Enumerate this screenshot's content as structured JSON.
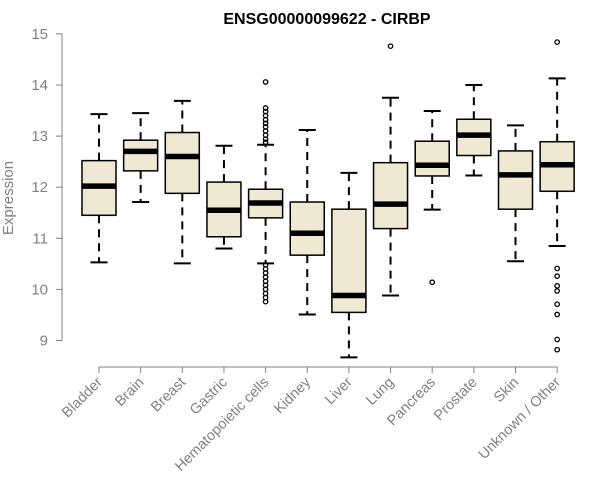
{
  "chart_data": {
    "type": "box",
    "title": "ENSG00000099622 - CIRBP",
    "xlabel": "",
    "ylabel": "Expression",
    "ylim": [
      8.7,
      15.0
    ],
    "yticks": [
      9,
      10,
      11,
      12,
      13,
      14,
      15
    ],
    "box_fill": "#EFE8D2",
    "box_stroke": "#000000",
    "axis_color": "#808080",
    "categories": [
      "Bladder",
      "Brain",
      "Breast",
      "Gastric",
      "Hematopoietic cells",
      "Kidney",
      "Liver",
      "Lung",
      "Pancreas",
      "Prostate",
      "Skin",
      "Unknown / Other"
    ],
    "boxes": [
      {
        "name": "Bladder",
        "whisker_low": 10.53,
        "q1": 11.45,
        "median": 12.02,
        "q3": 12.52,
        "whisker_high": 13.43,
        "outliers": []
      },
      {
        "name": "Brain",
        "whisker_low": 11.71,
        "q1": 12.32,
        "median": 12.7,
        "q3": 12.92,
        "whisker_high": 13.45,
        "outliers": []
      },
      {
        "name": "Breast",
        "whisker_low": 10.51,
        "q1": 11.88,
        "median": 12.6,
        "q3": 13.07,
        "whisker_high": 13.69,
        "outliers": []
      },
      {
        "name": "Gastric",
        "whisker_low": 10.8,
        "q1": 11.03,
        "median": 11.55,
        "q3": 12.1,
        "whisker_high": 12.81,
        "outliers": []
      },
      {
        "name": "Hematopoietic cells",
        "whisker_low": 10.51,
        "q1": 11.4,
        "median": 11.69,
        "q3": 11.96,
        "whisker_high": 12.83,
        "outliers": [
          14.06,
          13.55,
          13.48,
          13.4,
          13.32,
          13.25,
          13.18,
          13.1,
          13.02,
          12.94,
          12.88,
          10.48,
          10.4,
          10.32,
          10.24,
          10.16,
          10.08,
          10.0,
          9.92,
          9.84,
          9.76
        ]
      },
      {
        "name": "Kidney",
        "whisker_low": 9.51,
        "q1": 10.67,
        "median": 11.1,
        "q3": 11.71,
        "whisker_high": 13.12,
        "outliers": []
      },
      {
        "name": "Liver",
        "whisker_low": 8.67,
        "q1": 9.55,
        "median": 9.88,
        "q3": 11.57,
        "whisker_high": 12.28,
        "outliers": []
      },
      {
        "name": "Lung",
        "whisker_low": 9.88,
        "q1": 11.19,
        "median": 11.67,
        "q3": 12.48,
        "whisker_high": 13.75,
        "outliers": [
          14.76
        ]
      },
      {
        "name": "Pancreas",
        "whisker_low": 11.56,
        "q1": 12.22,
        "median": 12.43,
        "q3": 12.9,
        "whisker_high": 13.49,
        "outliers": [
          10.14
        ]
      },
      {
        "name": "Prostate",
        "whisker_low": 12.23,
        "q1": 12.62,
        "median": 13.02,
        "q3": 13.33,
        "whisker_high": 14.0,
        "outliers": []
      },
      {
        "name": "Skin",
        "whisker_low": 10.55,
        "q1": 11.57,
        "median": 12.24,
        "q3": 12.71,
        "whisker_high": 13.21,
        "outliers": []
      },
      {
        "name": "Unknown / Other",
        "whisker_low": 10.85,
        "q1": 11.92,
        "median": 12.44,
        "q3": 12.89,
        "whisker_high": 14.13,
        "outliers": [
          14.84,
          10.41,
          10.26,
          10.07,
          9.97,
          9.71,
          9.51,
          9.02,
          8.82
        ]
      }
    ]
  }
}
